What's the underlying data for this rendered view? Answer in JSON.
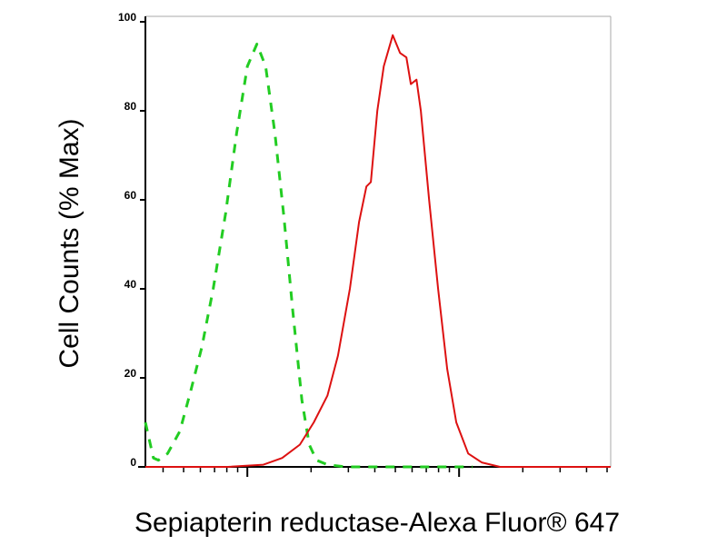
{
  "chart_data": {
    "type": "line",
    "ylabel": "Cell Counts (% Max)",
    "xlabel": "Sepiapterin reductase-Alexa Fluor® 647",
    "xscale": "log",
    "xlim": [
      33,
      5200
    ],
    "xticks": [
      100,
      1000
    ],
    "xminorticks": [
      40,
      50,
      60,
      70,
      80,
      90,
      200,
      300,
      400,
      500,
      600,
      700,
      800,
      900,
      2000,
      3000,
      4000,
      5000
    ],
    "ylim": [
      0,
      100
    ],
    "yticks": [
      0,
      20,
      40,
      60,
      80,
      100
    ],
    "series": [
      {
        "color": "#22cc22",
        "dash": true,
        "x": [
          33,
          36,
          38,
          42,
          48,
          54,
          61,
          69,
          79,
          89,
          100,
          111,
          122,
          135,
          149,
          164,
          181,
          196,
          212,
          239,
          291,
          581,
          1159
        ],
        "values": [
          10,
          2,
          1.5,
          3,
          8,
          17,
          27,
          40,
          57,
          75,
          90,
          95,
          90,
          75,
          56,
          35,
          15,
          5,
          1.5,
          0.5,
          0,
          0,
          0
        ]
      },
      {
        "color": "#dd1111",
        "dash": false,
        "x": [
          33,
          81,
          119,
          146,
          177,
          206,
          239,
          268,
          305,
          337,
          365,
          383,
          411,
          441,
          486,
          526,
          564,
          592,
          629,
          660,
          722,
          796,
          879,
          970,
          1104,
          1279,
          1560,
          5200
        ],
        "values": [
          0,
          0,
          0.5,
          2,
          5,
          10,
          16,
          25,
          40,
          55,
          63,
          64,
          80,
          90,
          97,
          93,
          92,
          86,
          87,
          80,
          60,
          40,
          22,
          10,
          3,
          1,
          0,
          0
        ]
      }
    ]
  }
}
